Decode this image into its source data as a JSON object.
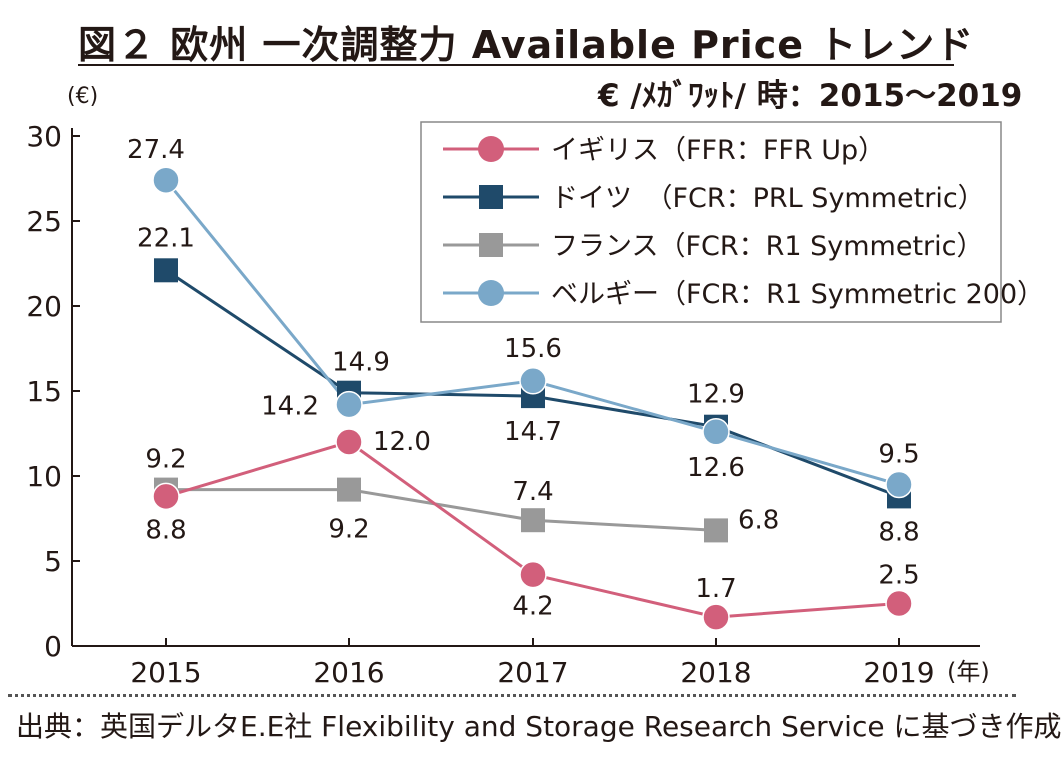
{
  "header": {
    "title": "図２ 欧州 一次調整力 Available Price トレンド",
    "unit": "€ /ﾒｶﾞﾜｯﾄ/ 時：2015〜2019"
  },
  "footer": {
    "source": "出典：英国デルタE.E社 Flexibility and Storage Research Service に基づき作成"
  },
  "chart_data": {
    "type": "line",
    "ylabel": "(€)",
    "xlabel": "(年)",
    "ylim": [
      0,
      30
    ],
    "yticks": [
      "0",
      "5",
      "10",
      "15",
      "20",
      "25",
      "30"
    ],
    "categories": [
      "2015",
      "2016",
      "2017",
      "2018",
      "2019"
    ],
    "legend_position": "top-right",
    "series": [
      {
        "name": "イギリス（FFR：FFR Up）",
        "color": "#d25f7b",
        "marker": "circle",
        "values": [
          8.8,
          12.0,
          4.2,
          1.7,
          2.5
        ],
        "labels": [
          "",
          "12.0",
          "4.2",
          "1.7",
          "2.5"
        ]
      },
      {
        "name": "ドイツ　（FCR：PRL Symmetric）",
        "color": "#1f4a6a",
        "marker": "square",
        "values": [
          22.1,
          14.9,
          14.7,
          12.9,
          8.8
        ],
        "labels": [
          "22.1",
          "14.9",
          "14.7",
          "12.9",
          "8.8"
        ]
      },
      {
        "name": "フランス（FCR：R1 Symmetric）",
        "color": "#999999",
        "marker": "square",
        "values": [
          9.2,
          9.2,
          7.4,
          6.8,
          null
        ],
        "labels": [
          "9.2",
          "9.2",
          "7.4",
          "6.8",
          ""
        ]
      },
      {
        "name": "ベルギー（FCR：R1 Symmetric 200）",
        "color": "#7aa8c9",
        "marker": "circle",
        "values": [
          27.4,
          14.2,
          15.6,
          12.6,
          9.5
        ],
        "labels": [
          "27.4",
          "14.2",
          "15.6",
          "12.6",
          "9.5"
        ]
      }
    ],
    "extra_labels": [
      "8.8"
    ]
  }
}
